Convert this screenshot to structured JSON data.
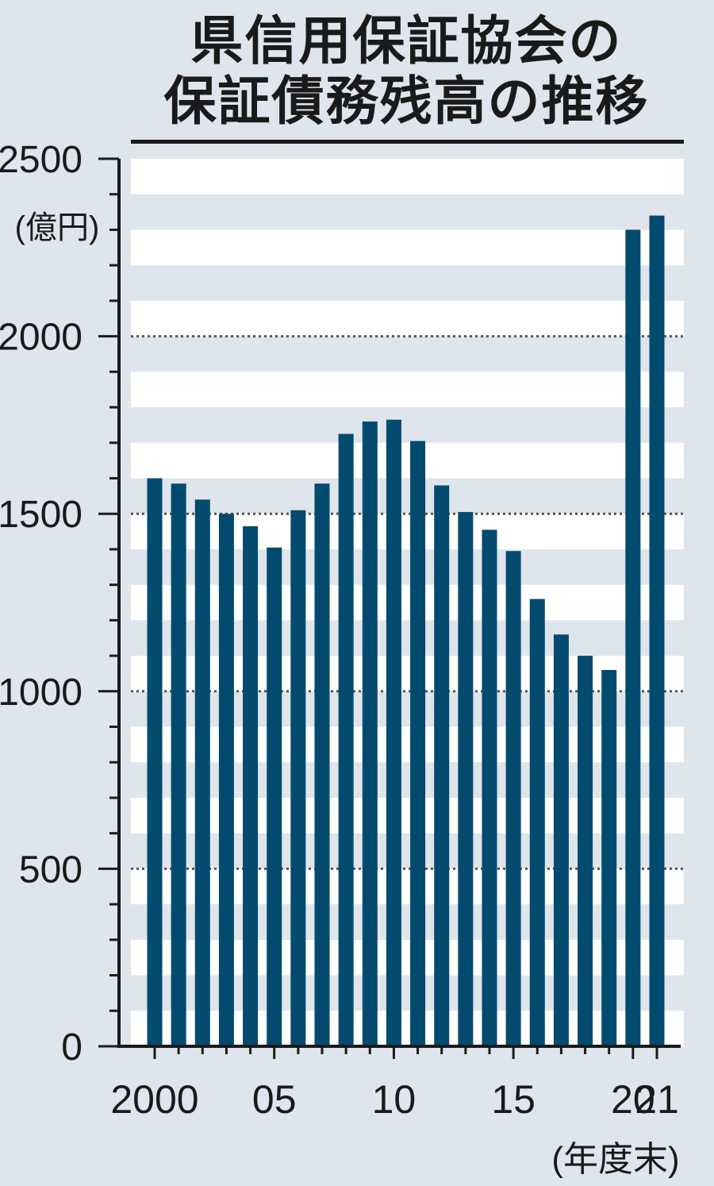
{
  "title": {
    "line1": "県信用保証協会の",
    "line2": "保証債務残高の推移"
  },
  "colors": {
    "background": "#dfe5ec",
    "band": "#ffffff",
    "bar": "#024b6e",
    "axis": "#1a1a1a",
    "gridline": "#555555"
  },
  "chart_data": {
    "type": "bar",
    "title": "県信用保証協会の保証債務残高の推移",
    "ylabel": "(億円)",
    "xlabel": "(年度末)",
    "ylim": [
      0,
      2500
    ],
    "yticks": [
      0,
      500,
      1000,
      1500,
      2000,
      2500
    ],
    "yticklabels": [
      "0",
      "500",
      "1000",
      "1500",
      "2000",
      "2500"
    ],
    "gridlines_dotted": [
      500,
      1000,
      1500,
      2000
    ],
    "categories": [
      "2000",
      "2001",
      "2002",
      "2003",
      "2004",
      "2005",
      "2006",
      "2007",
      "2008",
      "2009",
      "2010",
      "2011",
      "2012",
      "2013",
      "2014",
      "2015",
      "2016",
      "2017",
      "2018",
      "2019",
      "2020",
      "2021"
    ],
    "xticklabels": [
      "2000",
      "",
      "",
      "",
      "",
      "05",
      "",
      "",
      "",
      "",
      "10",
      "",
      "",
      "",
      "",
      "15",
      "",
      "",
      "",
      "",
      "20",
      "21"
    ],
    "series": [
      {
        "values": [
          1600,
          1585,
          1540,
          1500,
          1465,
          1405,
          1510,
          1585,
          1725,
          1760,
          1765,
          1705,
          1580,
          1505,
          1455,
          1395,
          1260,
          1160,
          1100,
          1060,
          2300,
          2340
        ]
      }
    ]
  }
}
